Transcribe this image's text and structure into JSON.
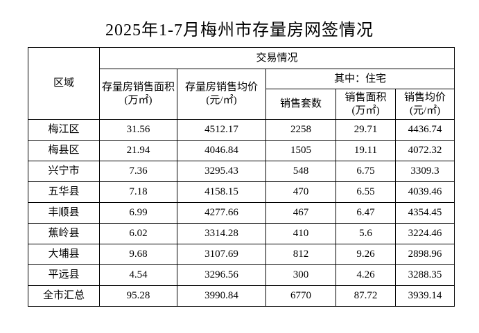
{
  "page": {
    "title": "2025年1-7月梅州市存量房网签情况"
  },
  "table": {
    "header": {
      "region": "区域",
      "transaction_group": "交易情况",
      "stock_sales_area": "存量房销售面积(万㎡)",
      "stock_avg_price": "存量房销售均价(元/㎡)",
      "residential_group": "其中：住宅",
      "units_sold": "销售套数",
      "res_sales_area": "销售面积(万㎡)",
      "res_avg_price": "销售均价(元/㎡)"
    },
    "columns_order": [
      "region",
      "stock_sales_area",
      "stock_avg_price",
      "units_sold",
      "res_sales_area",
      "res_avg_price"
    ],
    "rows": [
      {
        "region": "梅江区",
        "stock_sales_area": "31.56",
        "stock_avg_price": "4512.17",
        "units_sold": "2258",
        "res_sales_area": "29.71",
        "res_avg_price": "4436.74"
      },
      {
        "region": "梅县区",
        "stock_sales_area": "21.94",
        "stock_avg_price": "4046.84",
        "units_sold": "1505",
        "res_sales_area": "19.11",
        "res_avg_price": "4072.32"
      },
      {
        "region": "兴宁市",
        "stock_sales_area": "7.36",
        "stock_avg_price": "3295.43",
        "units_sold": "548",
        "res_sales_area": "6.75",
        "res_avg_price": "3309.3"
      },
      {
        "region": "五华县",
        "stock_sales_area": "7.18",
        "stock_avg_price": "4158.15",
        "units_sold": "470",
        "res_sales_area": "6.55",
        "res_avg_price": "4039.46"
      },
      {
        "region": "丰顺县",
        "stock_sales_area": "6.99",
        "stock_avg_price": "4277.66",
        "units_sold": "467",
        "res_sales_area": "6.47",
        "res_avg_price": "4354.45"
      },
      {
        "region": "蕉岭县",
        "stock_sales_area": "6.02",
        "stock_avg_price": "3314.28",
        "units_sold": "410",
        "res_sales_area": "5.6",
        "res_avg_price": "3224.46"
      },
      {
        "region": "大埔县",
        "stock_sales_area": "9.68",
        "stock_avg_price": "3107.69",
        "units_sold": "812",
        "res_sales_area": "9.26",
        "res_avg_price": "2898.96"
      },
      {
        "region": "平远县",
        "stock_sales_area": "4.54",
        "stock_avg_price": "3296.56",
        "units_sold": "300",
        "res_sales_area": "4.26",
        "res_avg_price": "3288.35"
      },
      {
        "region": "全市汇总",
        "stock_sales_area": "95.28",
        "stock_avg_price": "3990.84",
        "units_sold": "6770",
        "res_sales_area": "87.72",
        "res_avg_price": "3939.14"
      }
    ]
  }
}
